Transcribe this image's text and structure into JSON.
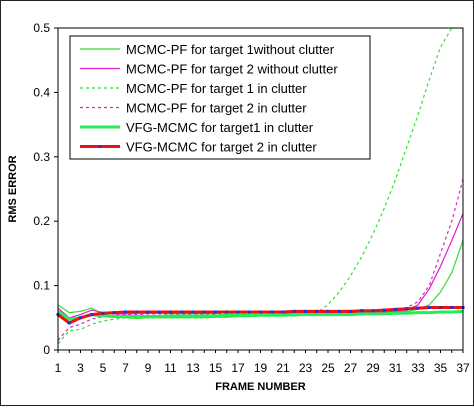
{
  "chart_data": {
    "type": "line",
    "title": "",
    "xlabel": "FRAME NUMBER",
    "ylabel": "RMS ERROR",
    "x": [
      1,
      2,
      3,
      4,
      5,
      6,
      7,
      8,
      9,
      10,
      11,
      12,
      13,
      14,
      15,
      16,
      17,
      18,
      19,
      20,
      21,
      22,
      23,
      24,
      25,
      26,
      27,
      28,
      29,
      30,
      31,
      32,
      33,
      34,
      35,
      36,
      37
    ],
    "xticks": [
      1,
      3,
      5,
      7,
      9,
      11,
      13,
      15,
      17,
      19,
      21,
      23,
      25,
      27,
      29,
      31,
      33,
      35,
      37
    ],
    "xtick_labels": [
      "1",
      "3",
      "5",
      "7",
      "9",
      "11",
      "13",
      "15",
      "17",
      "19",
      "21",
      "23",
      "25",
      "27",
      "29",
      "31",
      "33",
      "35",
      "37"
    ],
    "yticks": [
      0,
      0.1,
      0.2,
      0.3,
      0.4,
      0.5
    ],
    "ytick_labels": [
      "0",
      "0.1",
      "0.2",
      "0.3",
      "0.4",
      "0.5"
    ],
    "xlim": [
      1,
      37
    ],
    "ylim": [
      0,
      0.5
    ],
    "grid": "horizontal at 0.5 only",
    "legend_position": "top-left inside plot",
    "series": [
      {
        "name": "MCMC-PF for target 1without clutter",
        "color": "#33dd33",
        "dash": "solid",
        "width": 1.2,
        "values": [
          0.07,
          0.058,
          0.06,
          0.065,
          0.055,
          0.052,
          0.05,
          0.049,
          0.05,
          0.05,
          0.05,
          0.05,
          0.05,
          0.05,
          0.051,
          0.051,
          0.052,
          0.052,
          0.053,
          0.053,
          0.053,
          0.053,
          0.054,
          0.054,
          0.054,
          0.055,
          0.055,
          0.056,
          0.056,
          0.057,
          0.058,
          0.06,
          0.063,
          0.07,
          0.09,
          0.12,
          0.17
        ]
      },
      {
        "name": "MCMC-PF for target 2 without clutter",
        "color": "#dd22cc",
        "dash": "solid",
        "width": 1.2,
        "values": [
          0.065,
          0.05,
          0.055,
          0.062,
          0.058,
          0.056,
          0.056,
          0.057,
          0.057,
          0.057,
          0.057,
          0.057,
          0.057,
          0.057,
          0.057,
          0.058,
          0.058,
          0.058,
          0.058,
          0.058,
          0.058,
          0.058,
          0.058,
          0.058,
          0.058,
          0.058,
          0.058,
          0.058,
          0.059,
          0.059,
          0.06,
          0.062,
          0.07,
          0.095,
          0.13,
          0.17,
          0.212
        ]
      },
      {
        "name": "MCMC-PF for target 1 in clutter",
        "color": "#33dd33",
        "dash": "3,3",
        "width": 1.2,
        "values": [
          0.01,
          0.03,
          0.032,
          0.04,
          0.045,
          0.048,
          0.05,
          0.05,
          0.05,
          0.05,
          0.05,
          0.05,
          0.05,
          0.05,
          0.051,
          0.051,
          0.052,
          0.052,
          0.053,
          0.053,
          0.054,
          0.055,
          0.056,
          0.058,
          0.07,
          0.09,
          0.115,
          0.145,
          0.18,
          0.22,
          0.265,
          0.315,
          0.365,
          0.42,
          0.47,
          0.5,
          0.5
        ]
      },
      {
        "name": "MCMC-PF for target 2 in clutter",
        "color": "#dd22cc",
        "dash": "3,3",
        "width": 1.2,
        "values": [
          0.015,
          0.035,
          0.04,
          0.048,
          0.052,
          0.054,
          0.055,
          0.055,
          0.056,
          0.056,
          0.056,
          0.056,
          0.056,
          0.056,
          0.056,
          0.057,
          0.057,
          0.057,
          0.057,
          0.057,
          0.057,
          0.057,
          0.058,
          0.058,
          0.058,
          0.058,
          0.059,
          0.06,
          0.06,
          0.061,
          0.062,
          0.066,
          0.075,
          0.1,
          0.15,
          0.2,
          0.265
        ]
      },
      {
        "name": "VFG-MCMC for target1 in clutter",
        "color": "#22ee55",
        "dash": "solid",
        "width": 3,
        "values": [
          0.06,
          0.048,
          0.05,
          0.055,
          0.053,
          0.052,
          0.052,
          0.052,
          0.052,
          0.052,
          0.053,
          0.053,
          0.053,
          0.053,
          0.053,
          0.054,
          0.054,
          0.054,
          0.054,
          0.054,
          0.054,
          0.055,
          0.055,
          0.055,
          0.055,
          0.055,
          0.055,
          0.056,
          0.056,
          0.056,
          0.057,
          0.057,
          0.058,
          0.058,
          0.059,
          0.059,
          0.06
        ]
      },
      {
        "name": "VFG-MCMC for target 2 in clutter",
        "color": "#ee1111",
        "dash": "solid",
        "width": 3,
        "markers": "#2233cc",
        "values": [
          0.055,
          0.042,
          0.05,
          0.055,
          0.057,
          0.058,
          0.059,
          0.059,
          0.059,
          0.059,
          0.059,
          0.059,
          0.059,
          0.059,
          0.059,
          0.059,
          0.059,
          0.059,
          0.059,
          0.059,
          0.059,
          0.06,
          0.06,
          0.06,
          0.06,
          0.06,
          0.06,
          0.061,
          0.061,
          0.062,
          0.063,
          0.064,
          0.065,
          0.066,
          0.066,
          0.066,
          0.066
        ]
      }
    ]
  }
}
